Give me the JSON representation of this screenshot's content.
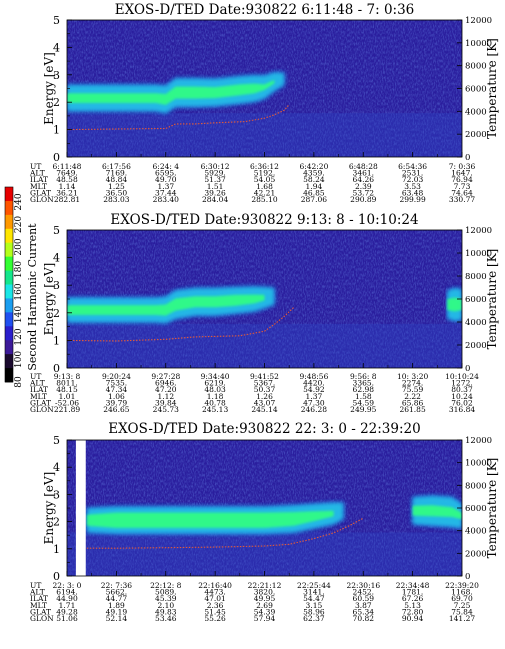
{
  "colors": {
    "background": "#2a1e9e",
    "band_core": "#33ff80",
    "band_mid": "#28d6e6",
    "band_outer": "#1f64e8",
    "temperature_trace": "#e05a3c"
  },
  "colorbar": {
    "title": "Second Harmonic Current",
    "ticks": [
      "240",
      "220",
      "200",
      "180",
      "160",
      "140",
      "120",
      "100",
      "80"
    ],
    "colors": [
      "#e60000",
      "#ff5500",
      "#ff9900",
      "#ffe600",
      "#b4ff1a",
      "#33ff33",
      "#14e68c",
      "#1ae6e6",
      "#1a9ef0",
      "#2050f0",
      "#2a1ecc",
      "#3c1a99",
      "#1a0a2e",
      "#000000"
    ]
  },
  "chart_data": [
    {
      "type": "heatmap",
      "title": "EXOS-D/TED   Date:930822   6:11:48 - 7: 0:36",
      "ylabel": "Energy [eV]",
      "ylabel_right": "Temperature [K]",
      "ylim": [
        0,
        5
      ],
      "yticks": [
        "0",
        "1",
        "2",
        "3",
        "4",
        "5"
      ],
      "ylim_right": [
        0,
        12000
      ],
      "yticks_right": [
        "0",
        "2000",
        "4000",
        "6000",
        "8000",
        "10000",
        "12000"
      ],
      "x": [
        0,
        1,
        2,
        3,
        4,
        5,
        6,
        7,
        8
      ],
      "band": {
        "x": [
          0.0,
          1.0,
          1.8,
          2.0,
          2.2,
          2.6,
          3.0,
          3.5,
          3.8,
          4.0,
          4.2,
          4.4
        ],
        "center": [
          2.15,
          2.15,
          2.15,
          2.1,
          2.35,
          2.35,
          2.35,
          2.45,
          2.5,
          2.55,
          2.75,
          2.85
        ],
        "core_half": [
          0.18,
          0.18,
          0.18,
          0.2,
          0.22,
          0.22,
          0.2,
          0.2,
          0.18,
          0.1,
          0.06,
          0.0
        ],
        "halo_half": [
          0.48,
          0.48,
          0.48,
          0.5,
          0.52,
          0.52,
          0.5,
          0.5,
          0.48,
          0.42,
          0.34,
          0.22
        ]
      },
      "temperature": {
        "x": [
          0.0,
          1.0,
          2.0,
          2.2,
          2.6,
          3.0,
          3.6,
          4.0,
          4.2,
          4.4,
          4.5
        ],
        "values": [
          2400,
          2450,
          2500,
          2900,
          2900,
          3000,
          3100,
          3400,
          3700,
          4100,
          4600
        ]
      },
      "rows": [
        {
          "label": "UT",
          "values": [
            "6:11:48",
            "6:17:56",
            "6:24: 4",
            "6:30:12",
            "6:36:12",
            "6:42:20",
            "6:48:28",
            "6:54:36",
            "7: 0:36"
          ]
        },
        {
          "label": "ALT",
          "values": [
            "7649.",
            "7169.",
            "6595.",
            "5929.",
            "5192.",
            "4359.",
            "3461.",
            "2531.",
            "1647."
          ]
        },
        {
          "label": "ILAT",
          "values": [
            "48.58",
            "48.84",
            "49.70",
            "51.37",
            "54.05",
            "58.24",
            "64.26",
            "72.03",
            "76.94"
          ]
        },
        {
          "label": "MLT",
          "values": [
            "1.14",
            "1.25",
            "1.37",
            "1.51",
            "1.68",
            "1.94",
            "2.39",
            "3.53",
            "7.73"
          ]
        },
        {
          "label": "GLAT",
          "values": [
            "36.21",
            "36.50",
            "37.44",
            "39.26",
            "42.21",
            "46.85",
            "53.72",
            "63.48",
            "74.64"
          ]
        },
        {
          "label": "GLON",
          "values": [
            "282.81",
            "283.03",
            "283.40",
            "284.04",
            "285.10",
            "287.06",
            "290.89",
            "299.99",
            "330.77"
          ]
        }
      ]
    },
    {
      "type": "heatmap",
      "title": "EXOS-D/TED   Date:930822   9:13: 8 - 10:10:24",
      "ylabel": "Energy [eV]",
      "ylabel_right": "Temperature [K]",
      "ylim": [
        0,
        5
      ],
      "yticks": [
        "0",
        "1",
        "2",
        "3",
        "4",
        "5"
      ],
      "ylim_right": [
        0,
        12000
      ],
      "yticks_right": [
        "0",
        "2000",
        "4000",
        "6000",
        "8000",
        "10000",
        "12000"
      ],
      "x": [
        0,
        1,
        2,
        3,
        4,
        5,
        6,
        7,
        8
      ],
      "band": {
        "x": [
          0.0,
          1.0,
          1.8,
          2.0,
          2.2,
          2.6,
          3.0,
          3.4,
          3.8,
          4.0,
          4.2,
          4.3,
          7.5,
          7.7,
          7.85,
          8.0
        ],
        "center": [
          2.1,
          2.1,
          2.1,
          2.1,
          2.3,
          2.4,
          2.4,
          2.45,
          2.5,
          2.55,
          2.6,
          2.6,
          2.2,
          2.3,
          2.3,
          2.3
        ],
        "core_half": [
          0.18,
          0.18,
          0.18,
          0.2,
          0.22,
          0.2,
          0.2,
          0.2,
          0.16,
          0.1,
          0.0,
          0.0,
          0.0,
          0.2,
          0.25,
          0.2
        ],
        "halo_half": [
          0.45,
          0.45,
          0.45,
          0.48,
          0.52,
          0.5,
          0.5,
          0.48,
          0.45,
          0.38,
          0.3,
          0.0,
          0.0,
          0.5,
          0.6,
          0.55
        ]
      },
      "temperature": {
        "x": [
          0.0,
          1.0,
          2.0,
          2.6,
          3.0,
          3.5,
          4.0,
          4.2,
          4.4,
          4.6
        ],
        "values": [
          2400,
          2350,
          2500,
          2700,
          2750,
          2800,
          3200,
          3800,
          4500,
          5300
        ]
      },
      "rows": [
        {
          "label": "UT",
          "values": [
            "9:13: 8",
            "9:20:24",
            "9:27:28",
            "9:34:40",
            "9:41:52",
            "9:48:56",
            "9:56: 8",
            "10: 3:20",
            "10:10:24"
          ]
        },
        {
          "label": "ALT",
          "values": [
            "8011.",
            "7535.",
            "6946.",
            "6219.",
            "5367.",
            "4420.",
            "3365.",
            "2274.",
            "1272."
          ]
        },
        {
          "label": "ILAT",
          "values": [
            "48.15",
            "47.34",
            "47.20",
            "48.03",
            "50.37",
            "54.92",
            "62.98",
            "75.59",
            "80.37"
          ]
        },
        {
          "label": "MLT",
          "values": [
            "1.01",
            "1.06",
            "1.12",
            "1.18",
            "1.26",
            "1.37",
            "1.58",
            "2.22",
            "10.24"
          ]
        },
        {
          "label": "GLAT",
          "values": [
            "-52.06",
            "39.79",
            "39.84",
            "40.78",
            "43.07",
            "47.30",
            "54.59",
            "65.86",
            "76.02"
          ]
        },
        {
          "label": "GLON",
          "values": [
            "221.89",
            "246.65",
            "245.73",
            "245.13",
            "245.14",
            "246.28",
            "249.95",
            "261.85",
            "316.84"
          ]
        }
      ]
    },
    {
      "type": "heatmap",
      "title": "EXOS-D/TED   Date:930822   22: 3: 0 - 22:39:20",
      "ylabel": "Energy [eV]",
      "ylabel_right": "Temperature [K]",
      "ylim": [
        0,
        5
      ],
      "yticks": [
        "0",
        "1",
        "2",
        "3",
        "4",
        "5"
      ],
      "ylim_right": [
        0,
        12000
      ],
      "yticks_right": [
        "0",
        "2000",
        "4000",
        "6000",
        "8000",
        "10000",
        "12000"
      ],
      "x": [
        0,
        1,
        2,
        3,
        4,
        5,
        6,
        7,
        8
      ],
      "data_gap": [
        0.18,
        0.38
      ],
      "band": {
        "x": [
          0.4,
          1.0,
          2.0,
          3.0,
          4.0,
          4.6,
          5.0,
          5.4,
          5.6,
          5.8,
          6.2,
          6.8,
          7.0,
          7.4,
          7.8,
          8.0
        ],
        "center": [
          2.05,
          2.05,
          2.05,
          2.05,
          2.05,
          2.1,
          2.2,
          2.3,
          2.4,
          2.4,
          2.4,
          2.4,
          2.4,
          2.4,
          2.35,
          2.2
        ],
        "core_half": [
          0.2,
          0.28,
          0.28,
          0.28,
          0.28,
          0.25,
          0.18,
          0.1,
          0.0,
          0.0,
          0.0,
          0.0,
          0.18,
          0.2,
          0.18,
          0.12
        ],
        "halo_half": [
          0.45,
          0.5,
          0.5,
          0.5,
          0.5,
          0.5,
          0.45,
          0.4,
          0.3,
          0.0,
          0.0,
          0.0,
          0.5,
          0.55,
          0.55,
          0.45
        ]
      },
      "temperature": {
        "x": [
          0.4,
          1.0,
          2.0,
          3.0,
          4.0,
          4.5,
          5.0,
          5.4,
          5.7,
          6.0
        ],
        "values": [
          2450,
          2450,
          2500,
          2550,
          2650,
          2800,
          3300,
          3800,
          4400,
          5100
        ]
      },
      "rows": [
        {
          "label": "UT",
          "values": [
            "22: 3: 0",
            "22: 7:36",
            "22:12: 8",
            "22:16:40",
            "22:21:12",
            "22:25:44",
            "22:30:16",
            "22:34:48",
            "22:39:20"
          ]
        },
        {
          "label": "ALT",
          "values": [
            "6194.",
            "5662.",
            "5089.",
            "4473.",
            "3820.",
            "3141.",
            "2452.",
            "1781.",
            "1168."
          ]
        },
        {
          "label": "ILAT",
          "values": [
            "44.90",
            "44.77",
            "45.39",
            "47.01",
            "49.95",
            "54.47",
            "60.59",
            "67.26",
            "69.70"
          ]
        },
        {
          "label": "MLT",
          "values": [
            "1.71",
            "1.89",
            "2.10",
            "2.36",
            "2.69",
            "3.15",
            "3.87",
            "5.13",
            "7.25"
          ]
        },
        {
          "label": "GLAT",
          "values": [
            "49.28",
            "49.19",
            "49.83",
            "51.45",
            "54.39",
            "58.96",
            "65.34",
            "72.80",
            "75.84"
          ]
        },
        {
          "label": "GLON",
          "values": [
            "51.06",
            "52.14",
            "53.46",
            "55.26",
            "57.94",
            "62.37",
            "70.82",
            "90.94",
            "141.27"
          ]
        }
      ]
    }
  ]
}
